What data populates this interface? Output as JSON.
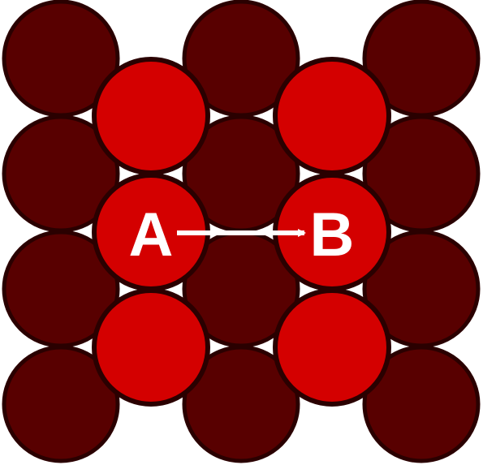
{
  "diagram": {
    "labels": {
      "site_a": "A",
      "site_b": "B"
    }
  },
  "colors": {
    "substrate_atom_fill": "#580000",
    "adatom_fill": "#d40000",
    "atom_outline": "#2a0000",
    "arrow": "#ffffff",
    "label": "#ffffff",
    "background": "#ffffff"
  }
}
